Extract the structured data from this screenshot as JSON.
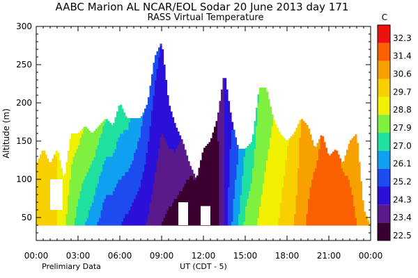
{
  "chart_data": {
    "type": "heatmap",
    "title": "AABC Marion AL  NCAR/EOL Sodar  20 June 2013  day 171",
    "subtitle": "RASS Virtual Temperature",
    "ylabel": "Altitude (m)",
    "xlabel": "UT  (CDT - 5)",
    "footnote": "Prelimiary Data",
    "x_range_hours": [
      0,
      24
    ],
    "ylim": [
      20,
      300
    ],
    "y_ticks": [
      50,
      100,
      150,
      200,
      250,
      300
    ],
    "x_ticks": [
      {
        "hour": 0,
        "label": "00:00"
      },
      {
        "hour": 3,
        "label": "03:00"
      },
      {
        "hour": 6,
        "label": "06:00"
      },
      {
        "hour": 9,
        "label": "09:00"
      },
      {
        "hour": 12,
        "label": "12:00"
      },
      {
        "hour": 15,
        "label": "15:00"
      },
      {
        "hour": 18,
        "label": "18:00"
      },
      {
        "hour": 21,
        "label": "21:00"
      },
      {
        "hour": 24,
        "label": "00:00"
      }
    ],
    "colorbar": {
      "unit": "C",
      "levels": [
        22.5,
        23.4,
        24.3,
        25.2,
        26.1,
        27.0,
        27.9,
        28.8,
        29.7,
        30.6,
        31.4,
        32.3
      ],
      "colors": [
        "#3a0030",
        "#5a1a8c",
        "#2a10d8",
        "#1c4cf0",
        "#10a0f0",
        "#20e0a0",
        "#80f040",
        "#f0f000",
        "#f8d000",
        "#f8a000",
        "#f86000",
        "#f01010"
      ]
    },
    "profile_top_m": [
      {
        "hour": 0.0,
        "top": 120
      },
      {
        "hour": 0.5,
        "top": 140
      },
      {
        "hour": 1.0,
        "top": 120
      },
      {
        "hour": 1.5,
        "top": 140
      },
      {
        "hour": 2.0,
        "top": 100
      },
      {
        "hour": 2.5,
        "top": 160
      },
      {
        "hour": 3.0,
        "top": 160
      },
      {
        "hour": 3.5,
        "top": 170
      },
      {
        "hour": 4.0,
        "top": 160
      },
      {
        "hour": 4.5,
        "top": 170
      },
      {
        "hour": 5.0,
        "top": 180
      },
      {
        "hour": 5.5,
        "top": 170
      },
      {
        "hour": 6.0,
        "top": 200
      },
      {
        "hour": 6.5,
        "top": 180
      },
      {
        "hour": 7.0,
        "top": 180
      },
      {
        "hour": 7.5,
        "top": 180
      },
      {
        "hour": 8.0,
        "top": 200
      },
      {
        "hour": 8.5,
        "top": 260
      },
      {
        "hour": 9.0,
        "top": 280
      },
      {
        "hour": 9.5,
        "top": 200
      },
      {
        "hour": 10.0,
        "top": 170
      },
      {
        "hour": 10.5,
        "top": 150
      },
      {
        "hour": 11.0,
        "top": 120
      },
      {
        "hour": 11.5,
        "top": 100
      },
      {
        "hour": 12.0,
        "top": 140
      },
      {
        "hour": 12.5,
        "top": 150
      },
      {
        "hour": 13.0,
        "top": 180
      },
      {
        "hour": 13.5,
        "top": 240
      },
      {
        "hour": 14.0,
        "top": 180
      },
      {
        "hour": 14.5,
        "top": 140
      },
      {
        "hour": 15.0,
        "top": 140
      },
      {
        "hour": 15.5,
        "top": 150
      },
      {
        "hour": 16.0,
        "top": 220
      },
      {
        "hour": 16.5,
        "top": 220
      },
      {
        "hour": 17.0,
        "top": 180
      },
      {
        "hour": 17.5,
        "top": 160
      },
      {
        "hour": 18.0,
        "top": 150
      },
      {
        "hour": 18.5,
        "top": 160
      },
      {
        "hour": 19.0,
        "top": 180
      },
      {
        "hour": 19.5,
        "top": 170
      },
      {
        "hour": 20.0,
        "top": 140
      },
      {
        "hour": 20.5,
        "top": 160
      },
      {
        "hour": 21.0,
        "top": 130
      },
      {
        "hour": 21.5,
        "top": 140
      },
      {
        "hour": 22.0,
        "top": 120
      },
      {
        "hour": 22.5,
        "top": 150
      },
      {
        "hour": 23.0,
        "top": 160
      },
      {
        "hour": 23.5,
        "top": 60
      },
      {
        "hour": 24.0,
        "top": 40
      }
    ],
    "profile_bottom_m": 40,
    "temperature_by_hour_c": [
      {
        "hour": 0.0,
        "t_low": 30.6,
        "t_high": 30.4
      },
      {
        "hour": 1.0,
        "t_low": 30.4,
        "t_high": 30.0
      },
      {
        "hour": 2.0,
        "t_low": 29.0,
        "t_high": 29.3
      },
      {
        "hour": 3.0,
        "t_low": 27.5,
        "t_high": 29.0
      },
      {
        "hour": 4.0,
        "t_low": 26.5,
        "t_high": 28.6
      },
      {
        "hour": 5.0,
        "t_low": 25.4,
        "t_high": 27.9
      },
      {
        "hour": 6.0,
        "t_low": 25.2,
        "t_high": 27.6
      },
      {
        "hour": 7.0,
        "t_low": 24.7,
        "t_high": 26.9
      },
      {
        "hour": 8.0,
        "t_low": 24.2,
        "t_high": 25.8
      },
      {
        "hour": 9.0,
        "t_low": 23.4,
        "t_high": 25.2
      },
      {
        "hour": 10.0,
        "t_low": 22.9,
        "t_high": 24.8
      },
      {
        "hour": 11.0,
        "t_low": 22.6,
        "t_high": 23.6
      },
      {
        "hour": 12.0,
        "t_low": 22.5,
        "t_high": 23.2
      },
      {
        "hour": 13.0,
        "t_low": 22.9,
        "t_high": 23.4
      },
      {
        "hour": 14.0,
        "t_low": 26.0,
        "t_high": 25.0
      },
      {
        "hour": 15.0,
        "t_low": 28.1,
        "t_high": 27.0
      },
      {
        "hour": 16.0,
        "t_low": 28.9,
        "t_high": 27.9
      },
      {
        "hour": 17.0,
        "t_low": 29.4,
        "t_high": 28.8
      },
      {
        "hour": 18.0,
        "t_low": 30.2,
        "t_high": 29.6
      },
      {
        "hour": 19.0,
        "t_low": 31.0,
        "t_high": 30.6
      },
      {
        "hour": 20.0,
        "t_low": 32.1,
        "t_high": 31.1
      },
      {
        "hour": 21.0,
        "t_low": 32.3,
        "t_high": 31.8
      },
      {
        "hour": 22.0,
        "t_low": 32.0,
        "t_high": 31.3
      },
      {
        "hour": 23.0,
        "t_low": 31.4,
        "t_high": 30.9
      },
      {
        "hour": 24.0,
        "t_low": 30.6,
        "t_high": 30.4
      }
    ],
    "missing_regions": [
      {
        "hour_start": 1.0,
        "hour_end": 1.9,
        "alt_start_m": 60,
        "alt_end_m": 100
      },
      {
        "hour_start": 10.2,
        "hour_end": 10.9,
        "alt_start_m": 40,
        "alt_end_m": 70
      },
      {
        "hour_start": 11.8,
        "hour_end": 12.5,
        "alt_start_m": 40,
        "alt_end_m": 65
      }
    ]
  }
}
